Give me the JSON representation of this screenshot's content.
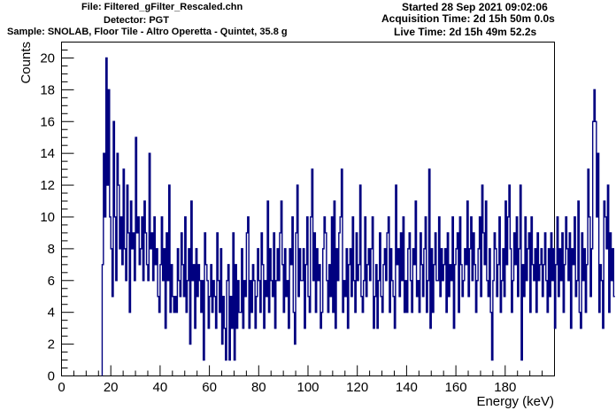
{
  "header": {
    "file": "File: Filtered_gFilter_Rescaled.chn",
    "detector": "Detector: PGT",
    "sample": "Sample: SNOLAB, Floor Tile - Altro Operetta - Quintet, 35.8 g",
    "started": "Started 28 Sep 2021 09:02:06",
    "acquisition": "Acquisition Time: 2d 15h 50m 0.0s",
    "live": "Live Time: 2d 15h 49m 52.2s"
  },
  "colors": {
    "series": "#000080",
    "axis": "#000000",
    "background": "#ffffff"
  },
  "chart_data": {
    "type": "line",
    "style": "step-histogram",
    "xlabel": "Energy (keV)",
    "ylabel": "Counts",
    "xlim": [
      0,
      200
    ],
    "ylim": [
      0,
      21
    ],
    "grid": false,
    "legend": "none",
    "xticks": [
      0,
      20,
      40,
      60,
      80,
      100,
      120,
      140,
      160,
      180
    ],
    "yticks": [
      0,
      2,
      4,
      6,
      8,
      10,
      12,
      14,
      16,
      18,
      20
    ],
    "bin_width_keV": 0.5,
    "x_start_keV": 16.5,
    "values": [
      7,
      14,
      10,
      20,
      12,
      18,
      10,
      8,
      5,
      16,
      10,
      6,
      14,
      12,
      8,
      10,
      7,
      13,
      8,
      6,
      12,
      9,
      4,
      11,
      8,
      9,
      6,
      15,
      9,
      10,
      7,
      8,
      10,
      6,
      11,
      9,
      7,
      6,
      14,
      8,
      9,
      6,
      10,
      7,
      8,
      5,
      4,
      7,
      10,
      6,
      8,
      3,
      9,
      6,
      12,
      4,
      7,
      5,
      4,
      5,
      4,
      8,
      6,
      5,
      9,
      7,
      5,
      10,
      4,
      6,
      8,
      2,
      11,
      6,
      7,
      3,
      8,
      5,
      7,
      6,
      4,
      6,
      1,
      9,
      7,
      6,
      3,
      5,
      7,
      4,
      6,
      5,
      3,
      9,
      6,
      4,
      8,
      2,
      5,
      3,
      1,
      6,
      7,
      1,
      5,
      3,
      9,
      1,
      7,
      3,
      6,
      4,
      4,
      8,
      3,
      6,
      5,
      9,
      10,
      3,
      6,
      4,
      7,
      6,
      3,
      5,
      8,
      6,
      4,
      9,
      7,
      3,
      6,
      5,
      11,
      4,
      8,
      6,
      5,
      9,
      3,
      6,
      8,
      6,
      9,
      11,
      7,
      4,
      8,
      5,
      6,
      3,
      8,
      7,
      10,
      4,
      2,
      9,
      12,
      5,
      8,
      6,
      6,
      8,
      3,
      7,
      10,
      5,
      4,
      10,
      13,
      6,
      9,
      4,
      8,
      6,
      7,
      3,
      4,
      8,
      10,
      9,
      6,
      4,
      7,
      5,
      10,
      4,
      11,
      3,
      8,
      6,
      9,
      10,
      13,
      4,
      6,
      5,
      8,
      3,
      7,
      8,
      5,
      10,
      6,
      4,
      9,
      6,
      7,
      12,
      5,
      4,
      6,
      10,
      5,
      7,
      8,
      6,
      8,
      10,
      3,
      5,
      7,
      3,
      6,
      9,
      5,
      4,
      7,
      8,
      6,
      9,
      10,
      4,
      8,
      6,
      5,
      3,
      12,
      7,
      8,
      5,
      9,
      6,
      10,
      4,
      6,
      4,
      8,
      9,
      6,
      4,
      8,
      7,
      11,
      5,
      6,
      4,
      9,
      7,
      5,
      8,
      10,
      4,
      6,
      13,
      3,
      8,
      4,
      7,
      9,
      6,
      6,
      10,
      5,
      8,
      6,
      7,
      8,
      4,
      9,
      5,
      7,
      6,
      10,
      3,
      7,
      8,
      9,
      4,
      10,
      7,
      5,
      6,
      8,
      7,
      11,
      5,
      8,
      10,
      6,
      9,
      7,
      4,
      6,
      8,
      10,
      5,
      12,
      9,
      7,
      11,
      6,
      5,
      8,
      4,
      1,
      6,
      9,
      8,
      5,
      7,
      10,
      4,
      6,
      8,
      5,
      11,
      7,
      10,
      12,
      8,
      4,
      6,
      9,
      7,
      10,
      5,
      8,
      12,
      1,
      7,
      5,
      10,
      6,
      8,
      9,
      4,
      10,
      7,
      6,
      8,
      4,
      9,
      6,
      7,
      8,
      5,
      7,
      9,
      6,
      4,
      8,
      5,
      9,
      6,
      8,
      3,
      7,
      10,
      5,
      8,
      6,
      9,
      4,
      7,
      10,
      8,
      6,
      9,
      3,
      8,
      7,
      10,
      5,
      6,
      11,
      4,
      3,
      9,
      6,
      8,
      4,
      7,
      13,
      10,
      5,
      8,
      16,
      18,
      16,
      10,
      14,
      4,
      7,
      6,
      3,
      11,
      10,
      8,
      12,
      4,
      9,
      6,
      8,
      5
    ]
  },
  "zero_label": "0"
}
